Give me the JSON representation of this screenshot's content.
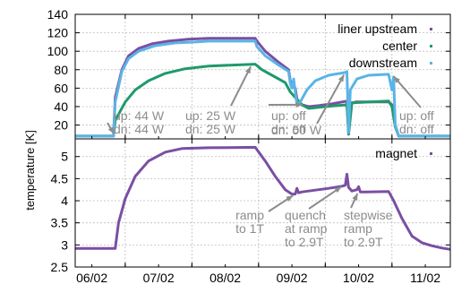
{
  "chart_data": [
    {
      "type": "line",
      "panel": "top",
      "ylabel": "temperature [K]",
      "ylim": [
        5,
        140
      ],
      "yticks": [
        "20",
        "40",
        "60",
        "80",
        "100",
        "120",
        "140"
      ],
      "xlim": [
        "2000-05-31 12:00",
        "2000-06-11 18:00"
      ],
      "xtick_positions": [
        "2000-06-02",
        "2000-06-04",
        "2000-06-06",
        "2000-06-08",
        "2000-06-10"
      ],
      "grid": true,
      "legend": "top-right",
      "series": [
        {
          "name": "liner upstream",
          "color": "#7a4fa3",
          "points": [
            [
              0.0,
              8
            ],
            [
              1.15,
              8
            ],
            [
              1.2,
              50
            ],
            [
              1.4,
              80
            ],
            [
              1.6,
              95
            ],
            [
              1.9,
              103
            ],
            [
              2.3,
              108
            ],
            [
              2.8,
              111
            ],
            [
              3.4,
              113
            ],
            [
              4.0,
              114
            ],
            [
              5.4,
              114
            ],
            [
              5.45,
              111
            ],
            [
              5.7,
              100
            ],
            [
              6.1,
              88
            ],
            [
              6.4,
              80
            ],
            [
              6.45,
              68
            ],
            [
              6.5,
              62
            ],
            [
              6.6,
              60
            ],
            [
              6.65,
              48
            ],
            [
              6.8,
              42
            ],
            [
              7.0,
              40
            ],
            [
              7.3,
              41
            ],
            [
              7.7,
              43
            ],
            [
              8.15,
              46
            ],
            [
              8.2,
              12
            ],
            [
              8.25,
              44
            ],
            [
              8.35,
              44
            ],
            [
              8.4,
              45
            ],
            [
              9.4,
              45
            ],
            [
              9.5,
              42
            ],
            [
              9.6,
              20
            ],
            [
              9.7,
              8
            ],
            [
              11.25,
              8
            ]
          ]
        },
        {
          "name": "center",
          "color": "#1f9a6a",
          "points": [
            [
              0.0,
              8
            ],
            [
              1.15,
              8
            ],
            [
              1.2,
              25
            ],
            [
              1.5,
              45
            ],
            [
              1.8,
              58
            ],
            [
              2.2,
              68
            ],
            [
              2.7,
              76
            ],
            [
              3.3,
              81
            ],
            [
              4.0,
              84
            ],
            [
              5.4,
              86
            ],
            [
              5.6,
              80
            ],
            [
              6.0,
              72
            ],
            [
              6.3,
              66
            ],
            [
              6.45,
              56
            ],
            [
              6.6,
              50
            ],
            [
              6.8,
              42
            ],
            [
              7.0,
              38
            ],
            [
              7.5,
              40
            ],
            [
              8.15,
              42
            ],
            [
              8.2,
              10
            ],
            [
              8.3,
              44
            ],
            [
              9.4,
              46
            ],
            [
              9.5,
              40
            ],
            [
              9.6,
              18
            ],
            [
              9.7,
              8
            ],
            [
              11.25,
              8
            ]
          ]
        },
        {
          "name": "downstream",
          "color": "#5ab4e6",
          "points": [
            [
              0.0,
              8
            ],
            [
              1.15,
              8
            ],
            [
              1.2,
              45
            ],
            [
              1.4,
              78
            ],
            [
              1.6,
              92
            ],
            [
              1.9,
              100
            ],
            [
              2.4,
              106
            ],
            [
              3.0,
              109
            ],
            [
              3.6,
              110
            ],
            [
              4.0,
              111
            ],
            [
              5.4,
              111
            ],
            [
              5.45,
              105
            ],
            [
              5.7,
              95
            ],
            [
              6.1,
              85
            ],
            [
              6.4,
              78
            ],
            [
              6.45,
              65
            ],
            [
              6.5,
              60
            ],
            [
              6.55,
              70
            ],
            [
              6.65,
              42
            ],
            [
              6.75,
              45
            ],
            [
              6.95,
              58
            ],
            [
              7.2,
              68
            ],
            [
              7.6,
              74
            ],
            [
              8.1,
              77
            ],
            [
              8.15,
              78
            ],
            [
              8.2,
              12
            ],
            [
              8.25,
              58
            ],
            [
              8.45,
              70
            ],
            [
              8.8,
              74
            ],
            [
              9.4,
              75
            ],
            [
              9.5,
              58
            ],
            [
              9.55,
              72
            ],
            [
              9.6,
              20
            ],
            [
              9.7,
              8
            ],
            [
              11.25,
              8
            ]
          ]
        }
      ],
      "annotations": [
        {
          "lines": [
            "up: 44 W",
            "dn: 44 W"
          ],
          "target": [
            1.2,
            8
          ]
        },
        {
          "lines": [
            "up: 25 W",
            "dn: 25 W"
          ],
          "target": [
            5.3,
            86
          ]
        },
        {
          "lines": [
            "up: off",
            "dn: off"
          ],
          "target": [
            6.9,
            42
          ]
        },
        {
          "lines": [
            "dn: 50 W"
          ],
          "target": [
            8.1,
            77
          ]
        },
        {
          "lines": [
            "up: off",
            "dn: off"
          ],
          "target": [
            9.5,
            75
          ]
        }
      ]
    },
    {
      "type": "line",
      "panel": "bottom",
      "ylim": [
        2.5,
        5.4
      ],
      "yticks": [
        "2.5",
        "3",
        "3.5",
        "4",
        "4.5",
        "5"
      ],
      "xlim": [
        "2000-05-31 12:00",
        "2000-06-11 18:00"
      ],
      "xticks": [
        "06/02",
        "07/02",
        "08/02",
        "09/02",
        "10/02",
        "11/02"
      ],
      "xtick_positions": [
        "2000-06-02",
        "2000-06-04",
        "2000-06-06",
        "2000-06-08",
        "2000-06-10"
      ],
      "grid": true,
      "legend": "top-right",
      "series": [
        {
          "name": "magnet",
          "color": "#7a4fa3",
          "points": [
            [
              0.0,
              2.92
            ],
            [
              1.2,
              2.92
            ],
            [
              1.3,
              3.5
            ],
            [
              1.5,
              4.05
            ],
            [
              1.8,
              4.55
            ],
            [
              2.2,
              4.9
            ],
            [
              2.7,
              5.1
            ],
            [
              3.2,
              5.18
            ],
            [
              4.0,
              5.2
            ],
            [
              5.4,
              5.21
            ],
            [
              5.7,
              4.9
            ],
            [
              6.0,
              4.55
            ],
            [
              6.3,
              4.25
            ],
            [
              6.5,
              4.15
            ],
            [
              6.6,
              4.15
            ],
            [
              6.65,
              4.28
            ],
            [
              6.7,
              4.18
            ],
            [
              6.8,
              4.2
            ],
            [
              7.2,
              4.24
            ],
            [
              7.6,
              4.28
            ],
            [
              8.0,
              4.33
            ],
            [
              8.1,
              4.35
            ],
            [
              8.15,
              4.6
            ],
            [
              8.2,
              4.3
            ],
            [
              8.3,
              4.22
            ],
            [
              8.45,
              4.25
            ],
            [
              8.5,
              4.32
            ],
            [
              8.55,
              4.2
            ],
            [
              8.7,
              4.2
            ],
            [
              9.4,
              4.21
            ],
            [
              9.55,
              4.0
            ],
            [
              9.8,
              3.6
            ],
            [
              10.1,
              3.2
            ],
            [
              10.4,
              3.05
            ],
            [
              10.7,
              2.98
            ],
            [
              11.0,
              2.93
            ],
            [
              11.25,
              2.9
            ]
          ]
        }
      ],
      "annotations": [
        {
          "lines": [
            "ramp",
            "to 1T"
          ],
          "target": [
            6.6,
            4.15
          ]
        },
        {
          "lines": [
            "quench",
            "at ramp",
            "to 2.9T"
          ],
          "target": [
            8.05,
            4.35
          ]
        },
        {
          "lines": [
            "stepwise",
            "ramp",
            "to 2.9T"
          ],
          "target": [
            8.5,
            4.22
          ]
        }
      ]
    }
  ]
}
